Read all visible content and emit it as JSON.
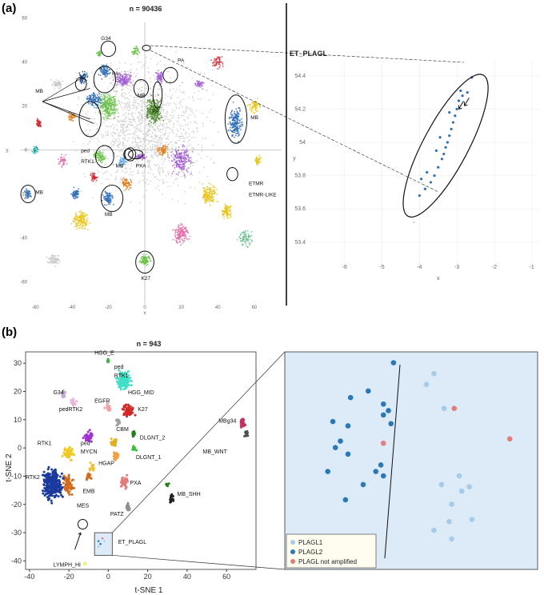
{
  "panel_a": {
    "tag": "(a)",
    "title": "n = 90436",
    "inset_title": "ET_PLAGL",
    "xlabel": "x",
    "ylabel": "y",
    "inset_xlabel": "x",
    "inset_ylabel": "y",
    "group_labels": [
      "G34",
      "PA",
      "PA",
      "MB",
      "MB",
      "PA",
      "MB",
      "ped RTK1",
      "MB",
      "PXA",
      "MB",
      "ETMR ETMR-LIKE",
      "MB",
      "K27"
    ],
    "colors": {
      "mb_blue": "#2f6fb8",
      "green": "#6cc24a",
      "purple": "#a25fd1",
      "orange": "#e07b1a",
      "yellow": "#e6c419",
      "grey": "#c8c8c8",
      "red": "#d1242f",
      "teal": "#1aa7a0",
      "pink": "#e36aa8"
    }
  },
  "panel_b": {
    "tag": "(b)",
    "title": "n = 943",
    "xlabel": "t-SNE 1",
    "ylabel": "t-SNE 2",
    "group_labels": [
      "HGG_E",
      "ped RTK1",
      "HGG_MID",
      "G34",
      "pedRTK2",
      "EGFR",
      "K27",
      "CBM",
      "DLGNT_2",
      "ped MYCN",
      "HGAP",
      "DLGNT_1",
      "MBg34",
      "MB_WNT",
      "RTK1",
      "RTK2",
      "EMB",
      "MES",
      "PXA",
      "MB_SHH",
      "PATZ",
      "ET_PLAGL",
      "LYMPH_HI"
    ],
    "legend": [
      {
        "label": "PLAGL1",
        "color": "#a6cbe8"
      },
      {
        "label": "PLAGL2",
        "color": "#2a78b8"
      },
      {
        "label": "PLAGL not amplified",
        "color": "#e47c7c"
      }
    ],
    "inset_bg": "#dcebf7"
  },
  "chart_data": [
    {
      "type": "scatter",
      "title": "n = 90436",
      "xlabel": "x",
      "ylabel": "y",
      "xlim": [
        -68,
        75
      ],
      "ylim": [
        -70,
        58
      ],
      "x_ticks": [
        -60,
        -40,
        -20,
        0,
        20,
        40,
        60
      ],
      "y_ticks": [
        -60,
        -40,
        -20,
        0,
        20,
        40,
        60
      ]
    },
    {
      "type": "scatter",
      "title": "ET_PLAGL",
      "xlabel": "x",
      "ylabel": "y",
      "xlim": [
        -7,
        -0.8
      ],
      "ylim": [
        53.25,
        54.5
      ],
      "x_ticks": [
        -6,
        -5,
        -4,
        -3,
        -2,
        -1
      ],
      "y_ticks": [
        53.4,
        53.6,
        53.8,
        54,
        54.2,
        54.4
      ],
      "points": [
        [
          -2.6,
          54.39
        ],
        [
          -2.72,
          54.3
        ],
        [
          -2.85,
          54.28
        ],
        [
          -2.95,
          54.25
        ],
        [
          -3.0,
          54.2
        ],
        [
          -3.05,
          54.16
        ],
        [
          -3.1,
          54.12
        ],
        [
          -3.15,
          54.08
        ],
        [
          -3.2,
          54.04
        ],
        [
          -3.25,
          54.0
        ],
        [
          -3.3,
          53.97
        ],
        [
          -3.35,
          53.93
        ],
        [
          -3.4,
          53.9
        ],
        [
          -3.5,
          53.85
        ],
        [
          -3.6,
          53.8
        ],
        [
          -3.7,
          53.76
        ],
        [
          -3.85,
          53.72
        ],
        [
          -4.0,
          53.68
        ],
        [
          -3.95,
          53.78
        ],
        [
          -3.8,
          53.82
        ],
        [
          -3.55,
          53.95
        ],
        [
          -3.45,
          54.03
        ],
        [
          -3.2,
          54.18
        ],
        [
          -2.9,
          54.31
        ]
      ]
    },
    {
      "type": "scatter",
      "title": "n = 943",
      "xlabel": "t-SNE 1",
      "ylabel": "t-SNE 2",
      "xlim": [
        -42,
        75
      ],
      "ylim": [
        -43,
        34
      ],
      "x_ticks": [
        -40,
        -20,
        0,
        20,
        40,
        60
      ],
      "y_ticks": [
        30,
        20,
        10,
        0,
        -10,
        -20,
        -30,
        -40
      ]
    },
    {
      "type": "scatter",
      "title": "ET_PLAGL",
      "series": [
        {
          "name": "PLAGL1",
          "values": [
            [
              0.56,
              0.85
            ],
            [
              0.63,
              0.74
            ],
            [
              0.59,
              0.9
            ],
            [
              0.69,
              0.43
            ],
            [
              0.7,
              0.36
            ],
            [
              0.66,
              0.3
            ],
            [
              0.73,
              0.38
            ],
            [
              0.74,
              0.23
            ],
            [
              0.62,
              0.39
            ],
            [
              0.65,
              0.22
            ],
            [
              0.59,
              0.18
            ],
            [
              0.66,
              0.14
            ]
          ]
        },
        {
          "name": "PLAGL2",
          "values": [
            [
              0.43,
              0.95
            ],
            [
              0.26,
              0.79
            ],
            [
              0.33,
              0.82
            ],
            [
              0.19,
              0.68
            ],
            [
              0.25,
              0.66
            ],
            [
              0.41,
              0.73
            ],
            [
              0.42,
              0.67
            ],
            [
              0.39,
              0.76
            ],
            [
              0.39,
              0.71
            ],
            [
              0.22,
              0.59
            ],
            [
              0.2,
              0.56
            ],
            [
              0.25,
              0.53
            ],
            [
              0.38,
              0.48
            ],
            [
              0.39,
              0.43
            ],
            [
              0.36,
              0.45
            ],
            [
              0.17,
              0.45
            ],
            [
              0.31,
              0.39
            ],
            [
              0.24,
              0.32
            ]
          ]
        },
        {
          "name": "PLAGL not amplified",
          "values": [
            [
              0.67,
              0.74
            ],
            [
              0.39,
              0.58
            ],
            [
              0.89,
              0.6
            ]
          ]
        }
      ]
    }
  ]
}
